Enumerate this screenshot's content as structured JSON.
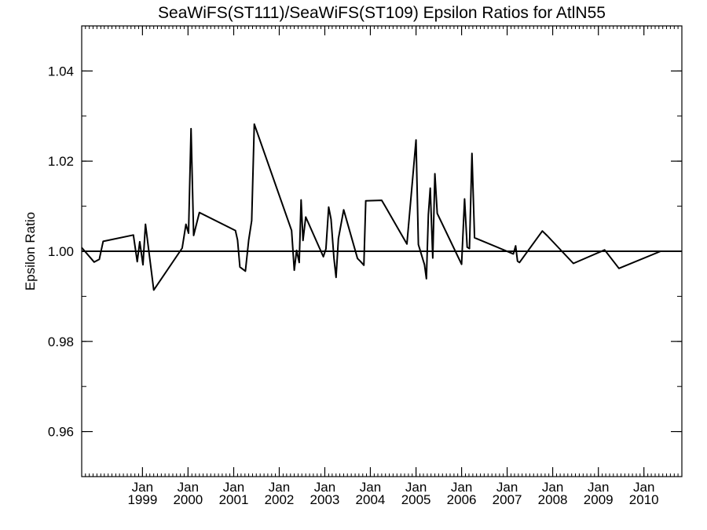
{
  "chart_data": {
    "type": "line",
    "title": "SeaWiFS(ST111)/SeaWiFS(ST109)  Epsilon Ratios for AtlN55",
    "xlabel": "",
    "ylabel": "Epsilon Ratio",
    "xlim": [
      "1997-09-01",
      "2010-11-01"
    ],
    "ylim": [
      0.95,
      1.05
    ],
    "yticks": [
      0.96,
      0.98,
      1.0,
      1.02,
      1.04
    ],
    "ytick_labels": [
      "0.96",
      "0.98",
      "1.00",
      "1.02",
      "1.04"
    ],
    "xticks": [
      {
        "date": "1999-01-01",
        "line1": "Jan",
        "line2": "1999"
      },
      {
        "date": "2000-01-01",
        "line1": "Jan",
        "line2": "2000"
      },
      {
        "date": "2001-01-01",
        "line1": "Jan",
        "line2": "2001"
      },
      {
        "date": "2002-01-01",
        "line1": "Jan",
        "line2": "2002"
      },
      {
        "date": "2003-01-01",
        "line1": "Jan",
        "line2": "2003"
      },
      {
        "date": "2004-01-01",
        "line1": "Jan",
        "line2": "2004"
      },
      {
        "date": "2005-01-01",
        "line1": "Jan",
        "line2": "2005"
      },
      {
        "date": "2006-01-01",
        "line1": "Jan",
        "line2": "2006"
      },
      {
        "date": "2007-01-01",
        "line1": "Jan",
        "line2": "2007"
      },
      {
        "date": "2008-01-01",
        "line1": "Jan",
        "line2": "2008"
      },
      {
        "date": "2009-01-01",
        "line1": "Jan",
        "line2": "2009"
      },
      {
        "date": "2010-01-01",
        "line1": "Jan",
        "line2": "2010"
      }
    ],
    "reference_line": 1.0,
    "grid": false,
    "series": [
      {
        "x": [
          "1997-09-01",
          "1997-12-10",
          "1998-01-20",
          "1998-02-20",
          "1998-10-20",
          "1998-11-20",
          "1998-12-10",
          "1999-01-05",
          "1999-01-25",
          "1999-04-01",
          "1999-11-15",
          "1999-12-15",
          "2000-01-05",
          "2000-01-25",
          "2000-02-15",
          "2000-04-01",
          "2001-01-15",
          "2001-02-01",
          "2001-02-20",
          "2001-04-05",
          "2001-05-01",
          "2001-05-25",
          "2001-06-15",
          "2002-04-10",
          "2002-05-01",
          "2002-05-20",
          "2002-06-10",
          "2002-06-25",
          "2002-07-10",
          "2002-08-01",
          "2002-12-20",
          "2003-01-10",
          "2003-02-01",
          "2003-02-20",
          "2003-03-15",
          "2003-04-01",
          "2003-04-20",
          "2003-06-01",
          "2003-09-20",
          "2003-10-15",
          "2003-11-10",
          "2003-11-25",
          "2004-04-01",
          "2004-05-01",
          "2004-10-20",
          "2005-01-01",
          "2005-01-20",
          "2005-03-10",
          "2005-03-25",
          "2005-04-10",
          "2005-04-25",
          "2005-05-15",
          "2005-06-01",
          "2005-06-20",
          "2006-01-01",
          "2006-01-25",
          "2006-02-15",
          "2006-03-05",
          "2006-03-25",
          "2006-04-15",
          "2007-02-20",
          "2007-03-10",
          "2007-03-25",
          "2007-04-10",
          "2007-10-10",
          "2007-11-20",
          "2008-06-15",
          "2009-02-20",
          "2009-06-15",
          "2010-05-15",
          "2010-06-10",
          "2010-07-01",
          "2010-07-25",
          "2010-08-20",
          "2010-11-01"
        ],
        "y": [
          1.0008,
          0.9976,
          0.9982,
          1.0022,
          1.0036,
          0.9977,
          1.0021,
          0.997,
          1.006,
          0.9914,
          1.0007,
          1.006,
          1.004,
          1.0272,
          1.0035,
          1.0086,
          1.0046,
          1.0025,
          0.9965,
          0.9956,
          1.0025,
          1.0068,
          1.0282,
          1.0046,
          0.9958,
          1.0002,
          0.9975,
          1.0114,
          1.0024,
          1.0076,
          0.9988,
          1.0005,
          1.0098,
          1.0071,
          0.9985,
          0.9942,
          1.0028,
          1.0092,
          0.9984,
          0.9977,
          0.9969,
          1.0112,
          1.0113,
          1.0099,
          1.0016,
          1.0247,
          1.0015,
          0.997,
          0.9939,
          1.0081,
          1.014,
          0.9985,
          1.0172,
          1.0084,
          0.9971,
          1.0116,
          1.0009,
          1.0006,
          1.0217,
          1.003,
          0.9994,
          1.0012,
          0.9978,
          0.9975,
          1.0045,
          1.0034,
          0.9973,
          1.0003,
          0.9962,
          1.0,
          1.0,
          1.0,
          1.0,
          1.0,
          1.0
        ]
      }
    ]
  }
}
